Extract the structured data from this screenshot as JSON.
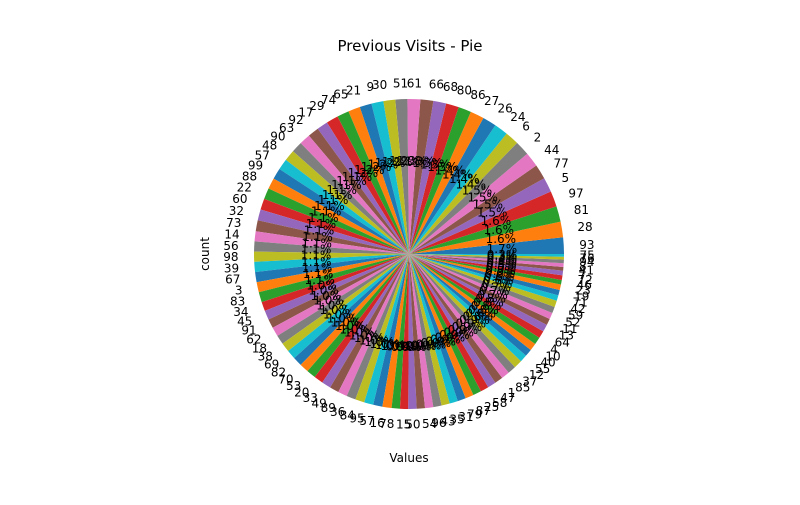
{
  "chart_data": {
    "type": "pie",
    "title": "Previous Visits - Pie",
    "xlabel": "Values",
    "ylabel": "count",
    "start_angle_deg": 0,
    "direction": "counterclockwise",
    "colors": [
      "#1f77b4",
      "#ff7f0e",
      "#2ca02c",
      "#d62728",
      "#9467bd",
      "#8c564b",
      "#e377c2",
      "#7f7f7f",
      "#bcbd22",
      "#17becf"
    ],
    "categories": [
      "93",
      "28",
      "81",
      "97",
      "5",
      "77",
      "44",
      "2",
      "6",
      "24",
      "26",
      "27",
      "86",
      "80",
      "68",
      "66",
      "61",
      "51",
      "30",
      "9",
      "21",
      "65",
      "74",
      "29",
      "17",
      "92",
      "63",
      "90",
      "48",
      "57",
      "99",
      "88",
      "22",
      "60",
      "32",
      "73",
      "14",
      "56",
      "98",
      "39",
      "67",
      "3",
      "83",
      "34",
      "45",
      "91",
      "62",
      "18",
      "38",
      "69",
      "82",
      "70",
      "53",
      "20",
      "33",
      "49",
      "89",
      "36",
      "84",
      "95",
      "57",
      "16",
      "78",
      "15",
      "50",
      "54",
      "96",
      "43",
      "35",
      "31",
      "79",
      "87",
      "25",
      "58",
      "47",
      "1",
      "85",
      "37",
      "12",
      "55",
      "40",
      "10",
      "4",
      "64",
      "13",
      "11",
      "52",
      "59",
      "42",
      "71",
      "19",
      "23",
      "46",
      "72",
      "7",
      "41",
      "8",
      "94",
      "76",
      "75"
    ],
    "values": [
      1.8,
      1.7,
      1.7,
      1.7,
      1.6,
      1.6,
      1.6,
      1.6,
      1.5,
      1.5,
      1.5,
      1.5,
      1.4,
      1.4,
      1.4,
      1.4,
      1.4,
      1.3,
      1.3,
      1.3,
      1.3,
      1.3,
      1.3,
      1.3,
      1.2,
      1.2,
      1.2,
      1.2,
      1.2,
      1.2,
      1.2,
      1.2,
      1.2,
      1.2,
      1.2,
      1.2,
      1.1,
      1.1,
      1.1,
      1.1,
      1.1,
      1.1,
      1.1,
      1.0,
      1.0,
      1.0,
      1.0,
      1.0,
      1.0,
      1.0,
      1.0,
      1.0,
      1.0,
      1.0,
      1.0,
      1.0,
      1.0,
      1.0,
      1.0,
      1.0,
      1.0,
      1.0,
      0.9,
      0.9,
      0.9,
      0.9,
      0.9,
      0.9,
      0.9,
      0.9,
      0.9,
      0.9,
      0.9,
      0.9,
      0.9,
      0.9,
      0.9,
      0.9,
      0.9,
      0.8,
      0.8,
      0.8,
      0.8,
      0.8,
      0.8,
      0.7,
      0.7,
      0.7,
      0.7,
      0.6,
      0.6,
      0.6,
      0.5,
      0.5,
      0.5,
      0.4,
      0.4,
      0.4,
      0.3,
      0.3
    ]
  }
}
